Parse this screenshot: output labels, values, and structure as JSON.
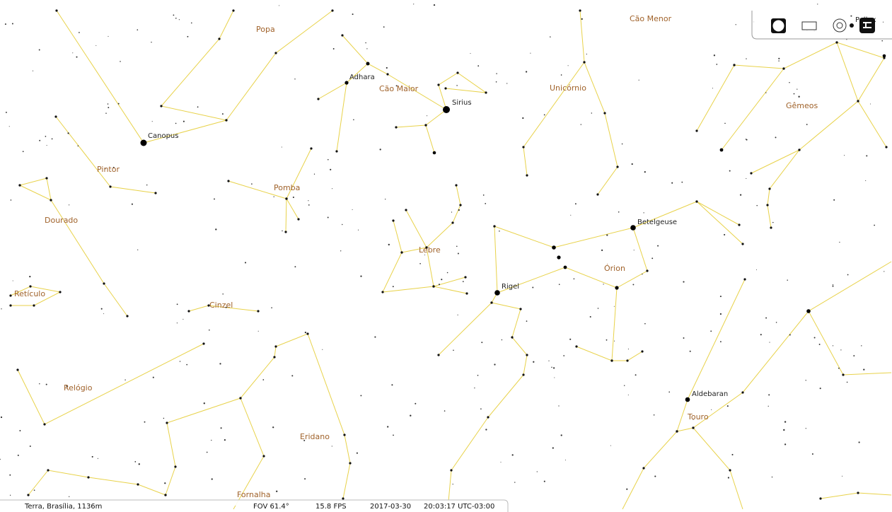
{
  "constellations": {
    "popa": "Popa",
    "cao_maior": "Cão Maior",
    "unicornio": "Unicórnio",
    "gemeos": "Gêmeos",
    "pintor": "Pintor",
    "dourado": "Dourado",
    "pomba": "Pomba",
    "lebre": "Lebre",
    "orion": "Órion",
    "reticulo": "Retículo",
    "cinzel": "Cinzel",
    "relogio": "Relógio",
    "eridano": "Eridano",
    "fornalha": "Fornalha",
    "touro": "Touro",
    "cao_menor": "Cão Menor"
  },
  "stars": {
    "canopus": "Canopus",
    "adhara": "Adhara",
    "sirius": "Sirius",
    "betelgeuse": "Betelgeuse",
    "rigel": "Rigel",
    "aldebaran": "Aldebaran",
    "pollux": "Pollux"
  },
  "status": {
    "location": "Terra, Brasília, 1136m",
    "fov": "FOV 61.4°",
    "fps": "15.8 FPS",
    "date": "2017-03-30",
    "time": "20:03:17 UTC-03:00"
  }
}
